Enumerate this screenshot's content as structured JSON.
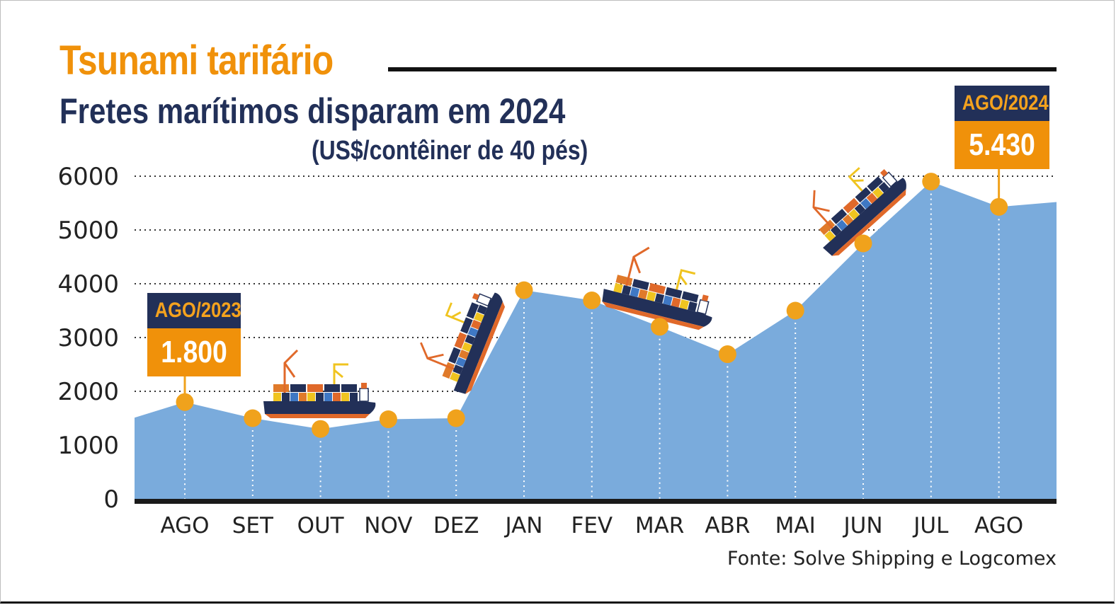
{
  "header": {
    "title": "Tsunami tarifário",
    "subtitle": "Fretes marítimos disparam em 2024",
    "unit": "(US$/contêiner de 40 pés)"
  },
  "source": "Fonte: Solve Shipping e Logcomex",
  "callouts": {
    "start": {
      "label": "AGO/2023",
      "value": "1.800"
    },
    "end": {
      "label": "AGO/2024",
      "value": "5.430"
    }
  },
  "colors": {
    "area": "#7aabdc",
    "marker": "#f0a21c",
    "title": "#f0910a",
    "navy": "#223058"
  },
  "chart_data": {
    "type": "area",
    "title": "Fretes marítimos disparam em 2024",
    "ylabel": "(US$/contêiner de 40 pés)",
    "categories": [
      "AGO",
      "SET",
      "OUT",
      "NOV",
      "DEZ",
      "JAN",
      "FEV",
      "MAR",
      "ABR",
      "MAI",
      "JUN",
      "JUL",
      "AGO"
    ],
    "values": [
      1800,
      1500,
      1300,
      1480,
      1500,
      3880,
      3690,
      3200,
      2690,
      3500,
      4750,
      5900,
      5430
    ],
    "yticks": [
      0,
      1000,
      2000,
      3000,
      4000,
      5000,
      6000
    ],
    "ylim": [
      0,
      6000
    ],
    "grid": true,
    "annotations": [
      "ship-icons"
    ]
  }
}
